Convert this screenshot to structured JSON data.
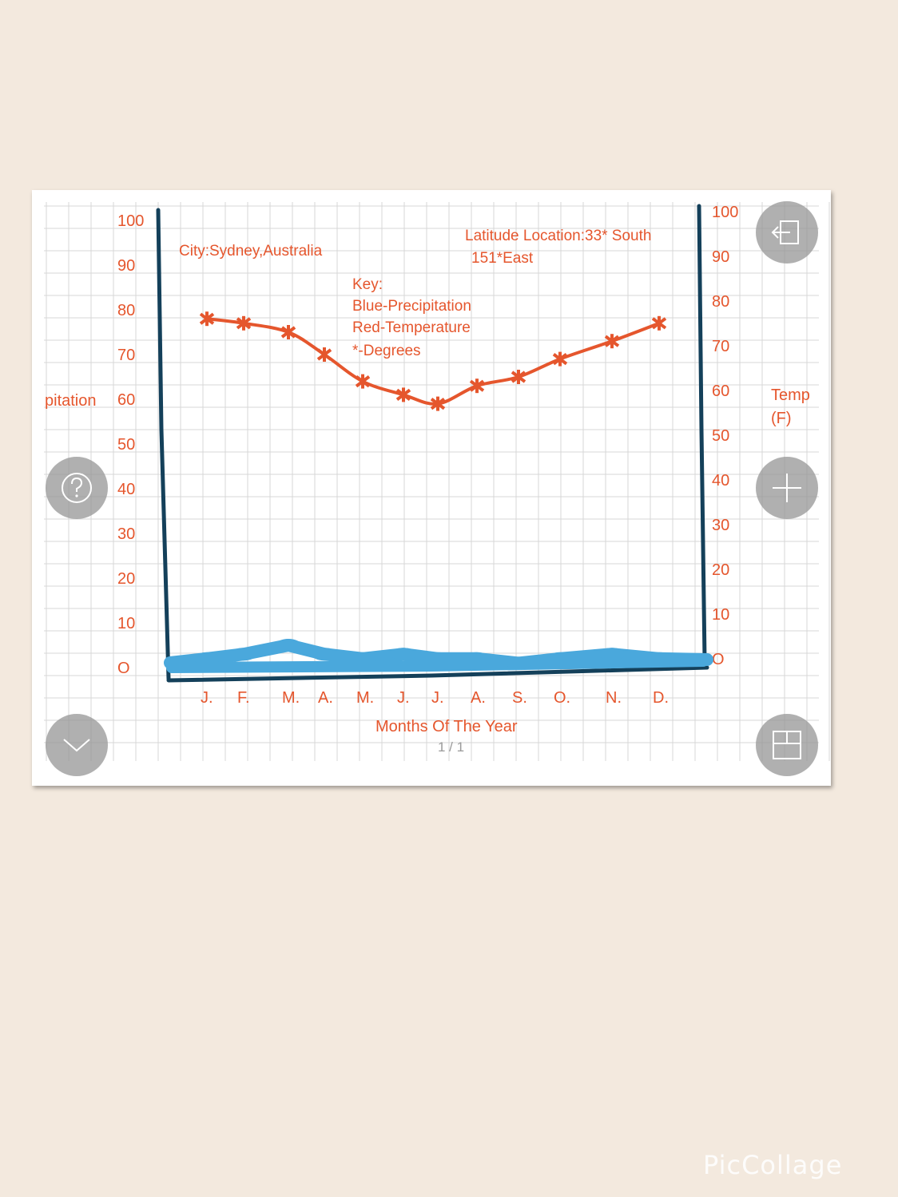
{
  "chart_data": {
    "type": "line",
    "city": "City:Sydney,Australia",
    "location_line1": "Latitude Location:33* South",
    "location_line2": "151*East",
    "key_title": "Key:",
    "key_items": [
      "Blue-Precipitation",
      "Red-Temperature",
      "*-Degrees"
    ],
    "xlabel": "Months Of The Year",
    "categories": [
      "J.",
      "F.",
      "M.",
      "A.",
      "M.",
      "J.",
      "J.",
      "A.",
      "S.",
      "O.",
      "N.",
      "D."
    ],
    "left_axis_label": "pitation",
    "right_axis_label_line1": "Temp",
    "right_axis_label_line2": "(F)",
    "left_ticks": [
      "100",
      "90",
      "80",
      "70",
      "60",
      "50",
      "40",
      "30",
      "20",
      "10",
      "O"
    ],
    "right_ticks": [
      "100",
      "90",
      "80",
      "70",
      "60",
      "50",
      "40",
      "30",
      "20",
      "10",
      "O"
    ],
    "ylim": [
      0,
      100
    ],
    "series": [
      {
        "name": "Red-Temperature",
        "color": "#e5562d",
        "values": [
          78,
          77,
          75,
          70,
          64,
          61,
          59,
          63,
          65,
          69,
          73,
          77
        ]
      },
      {
        "name": "Blue-Precipitation",
        "color": "#4aa8dc",
        "values": [
          2,
          3,
          5,
          3,
          2,
          3,
          2,
          2,
          1,
          2,
          3,
          2
        ]
      }
    ],
    "page_indicator": "1 / 1"
  },
  "buttons": {
    "back": "back-arrow-icon",
    "help": "help-icon",
    "zoom_in": "plus-icon",
    "collapse": "chevron-down-icon",
    "layout": "grid-layout-icon"
  },
  "watermark": "PicCollage"
}
